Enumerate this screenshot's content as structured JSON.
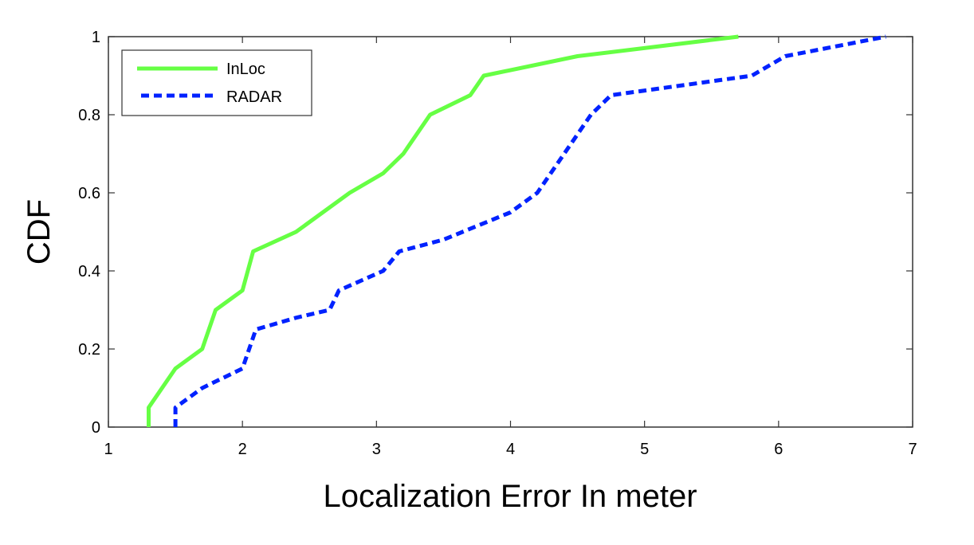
{
  "chart_data": {
    "type": "line",
    "title": "",
    "xlabel": "Localization Error In meter",
    "ylabel": "CDF",
    "xlim": [
      1,
      7
    ],
    "ylim": [
      0,
      1
    ],
    "xticks": [
      1,
      2,
      3,
      4,
      5,
      6,
      7
    ],
    "yticks": [
      0,
      0.2,
      0.4,
      0.6,
      0.8,
      1
    ],
    "xtick_labels": [
      "1",
      "2",
      "3",
      "4",
      "5",
      "6",
      "7"
    ],
    "ytick_labels": [
      "0",
      "0.2",
      "0.4",
      "0.6",
      "0.8",
      "1"
    ],
    "grid": false,
    "legend_position": "upper left",
    "series": [
      {
        "name": "InLoc",
        "color": "#66ff44",
        "style": "solid",
        "x": [
          1.3,
          1.3,
          1.5,
          1.7,
          1.8,
          2.0,
          2.08,
          2.4,
          2.8,
          3.05,
          3.2,
          3.4,
          3.7,
          3.8,
          4.5,
          5.7
        ],
        "y": [
          0.0,
          0.05,
          0.15,
          0.2,
          0.3,
          0.35,
          0.45,
          0.5,
          0.6,
          0.65,
          0.7,
          0.8,
          0.85,
          0.9,
          0.95,
          1.0
        ]
      },
      {
        "name": "RADAR",
        "color": "#0022ff",
        "style": "dashed",
        "x": [
          1.5,
          1.5,
          1.7,
          2.0,
          2.1,
          2.4,
          2.65,
          2.72,
          3.05,
          3.17,
          3.5,
          4.0,
          4.2,
          4.4,
          4.6,
          4.75,
          5.8,
          6.05,
          6.8
        ],
        "y": [
          0.0,
          0.05,
          0.1,
          0.15,
          0.25,
          0.28,
          0.3,
          0.35,
          0.4,
          0.45,
          0.48,
          0.55,
          0.6,
          0.7,
          0.8,
          0.85,
          0.9,
          0.95,
          1.0
        ]
      }
    ]
  }
}
